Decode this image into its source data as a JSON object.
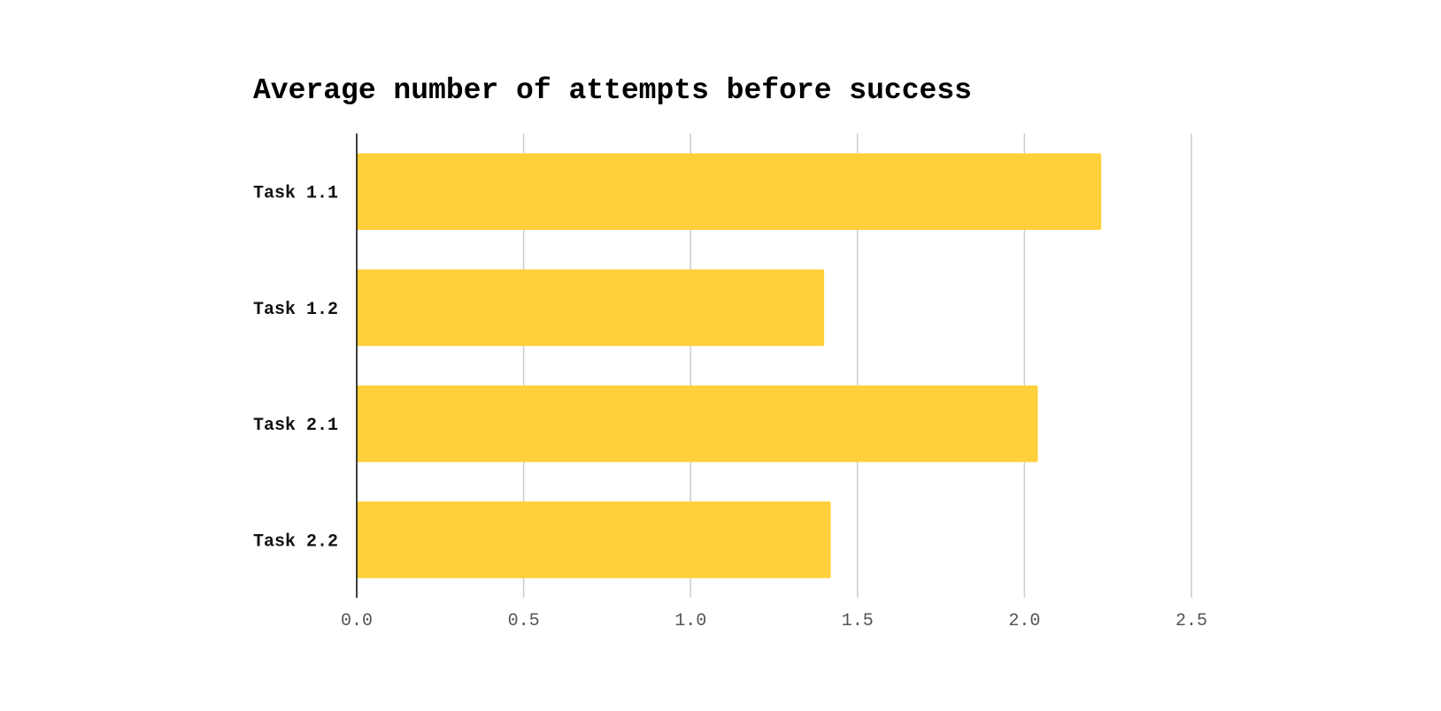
{
  "chart_data": {
    "type": "bar",
    "orientation": "horizontal",
    "title": "Average number of attempts before success",
    "xlabel": "",
    "ylabel": "",
    "categories": [
      "Task 1.1",
      "Task 1.2",
      "Task 2.1",
      "Task 2.2"
    ],
    "values": [
      2.23,
      1.4,
      2.04,
      1.42
    ],
    "xlim": [
      0,
      2.5
    ],
    "xticks": [
      "0.0",
      "0.5",
      "1.0",
      "1.5",
      "2.0",
      "2.5"
    ],
    "grid": "vertical",
    "colors": {
      "bar": "#FFD03B",
      "grid": "#cccccc",
      "axis": "#000000"
    }
  }
}
